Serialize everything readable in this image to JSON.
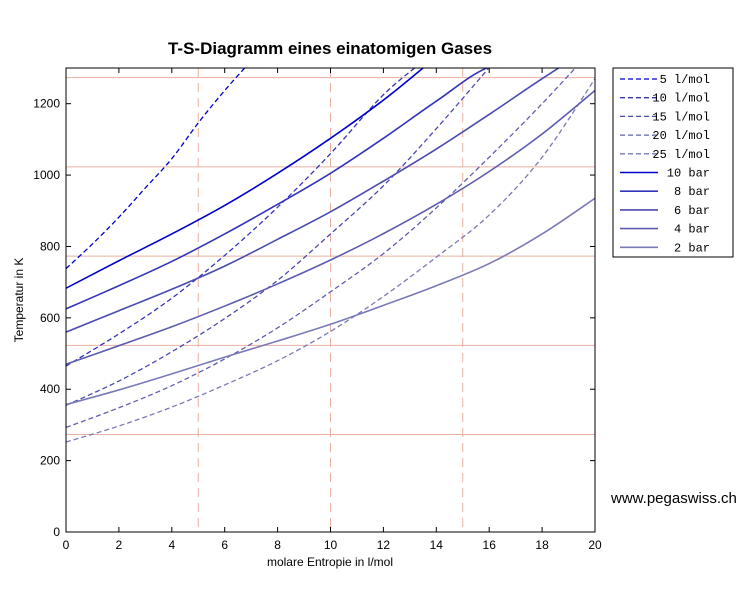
{
  "chart_data": {
    "type": "line",
    "title": "T-S-Diagramm eines einatomigen Gases",
    "xlabel": "molare Entropie in l/mol",
    "ylabel": "Temperatur in K",
    "xlim": [
      0,
      20
    ],
    "ylim": [
      0,
      1300
    ],
    "xticks": [
      0,
      2,
      4,
      6,
      8,
      10,
      12,
      14,
      16,
      18,
      20
    ],
    "yticks": [
      0,
      200,
      400,
      600,
      800,
      1000,
      1200
    ],
    "grid": {
      "vertical_dashed_x": [
        0,
        5,
        10,
        15,
        20
      ],
      "horizontal_solid_y": [
        273,
        523,
        773,
        1023,
        1273
      ],
      "color": "#e8b0a0"
    },
    "legend_position": "outside-right",
    "series": [
      {
        "name": "5 l/mol",
        "style": "dashed",
        "color": "#0000cc",
        "x": [
          0,
          1,
          2,
          3,
          4,
          5,
          6,
          7
        ],
        "y": [
          738,
          807,
          882,
          964,
          1046,
          1146,
          1237,
          1320
        ]
      },
      {
        "name": "10 l/mol",
        "style": "dashed",
        "color": "#3333bb",
        "x": [
          0,
          2,
          4,
          6,
          8,
          10,
          12,
          13.7
        ],
        "y": [
          465,
          555,
          655,
          775,
          910,
          1060,
          1225,
          1330
        ]
      },
      {
        "name": "15 l/mol",
        "style": "dashed",
        "color": "#4a4ab0",
        "x": [
          0,
          2,
          4,
          6,
          8,
          10,
          12,
          14,
          16.1
        ],
        "y": [
          355,
          423,
          505,
          598,
          705,
          835,
          970,
          1130,
          1310
        ]
      },
      {
        "name": "20 l/mol",
        "style": "dashed",
        "color": "#6060b0",
        "x": [
          0,
          2,
          4,
          6,
          8,
          10,
          12,
          14,
          16,
          18,
          20
        ],
        "y": [
          293,
          348,
          410,
          485,
          572,
          673,
          780,
          908,
          1050,
          1200,
          1360
        ]
      },
      {
        "name": "25 l/mol",
        "style": "dashed",
        "color": "#7a7ab8",
        "x": [
          0,
          2,
          4,
          6,
          8,
          10,
          12,
          14,
          16,
          18,
          20
        ],
        "y": [
          252,
          297,
          350,
          412,
          480,
          562,
          660,
          770,
          888,
          1050,
          1270
        ]
      },
      {
        "name": "10 bar",
        "style": "solid",
        "color": "#0000cc",
        "x": [
          0,
          2,
          4,
          6,
          8,
          10,
          12,
          13.5
        ],
        "y": [
          683,
          760,
          835,
          915,
          1005,
          1103,
          1210,
          1300
        ]
      },
      {
        "name": "8 bar",
        "style": "solid",
        "color": "#3333bb",
        "x": [
          0,
          2,
          4,
          6,
          8,
          10,
          12,
          14,
          16,
          18.2
        ],
        "y": [
          625,
          690,
          758,
          835,
          918,
          1005,
          1103,
          1207,
          1303,
          1330
        ]
      },
      {
        "name": "6 bar",
        "style": "solid",
        "color": "#4a4ab0",
        "x": [
          0,
          2,
          4,
          6,
          8,
          10,
          12,
          14,
          16,
          18,
          20
        ],
        "y": [
          560,
          620,
          680,
          745,
          820,
          897,
          983,
          1073,
          1170,
          1270,
          1365
        ]
      },
      {
        "name": "4 bar",
        "style": "solid",
        "color": "#5c5cb0",
        "x": [
          0,
          2,
          4,
          6,
          8,
          10,
          12,
          14,
          16,
          18,
          20
        ],
        "y": [
          470,
          522,
          575,
          633,
          695,
          762,
          836,
          918,
          1010,
          1115,
          1237
        ]
      },
      {
        "name": "2 bar",
        "style": "solid",
        "color": "#7a7ab8",
        "x": [
          0,
          2,
          4,
          6,
          8,
          10,
          12,
          14,
          16,
          18,
          20
        ],
        "y": [
          357,
          398,
          443,
          490,
          535,
          582,
          635,
          690,
          752,
          835,
          935
        ]
      }
    ]
  },
  "watermark": "www.pegaswiss.ch"
}
